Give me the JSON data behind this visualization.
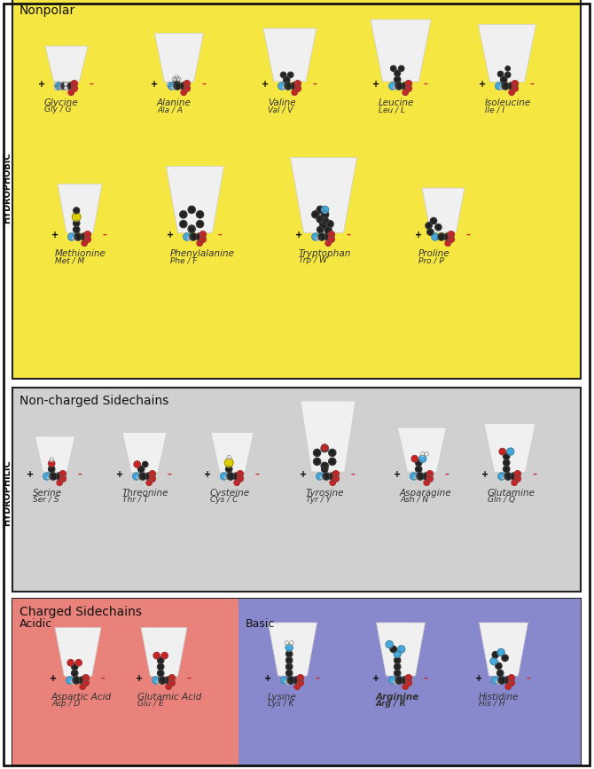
{
  "title_font_size": 9,
  "label_font_size": 7.5,
  "sublabel_font_size": 6.5,
  "bg_color": "#ffffff",
  "nonpolar_bg": "#f5e642",
  "noncharged_bg": "#d0d0d0",
  "acidic_bg": "#e8827a",
  "basic_bg": "#8888cc",
  "outer_border": "#222222",
  "section1_title": "Nonpolar",
  "section2_title": "Non-charged Sidechains",
  "section3_title": "Charged Sidechains",
  "acidic_label": "Acidic",
  "basic_label": "Basic",
  "hydrophobic_label": "HYDROPHOBIC",
  "hydrophilic_label": "HYDROPHILIC",
  "row1_acids": [
    {
      "name": "Glycine",
      "abbr": "Gly / G"
    },
    {
      "name": "Alanine",
      "abbr": "Ala / A"
    },
    {
      "name": "Valine",
      "abbr": "Val / V"
    },
    {
      "name": "Leucine",
      "abbr": "Leu / L"
    },
    {
      "name": "Isoleucine",
      "abbr": "Ile / I"
    }
  ],
  "row2_acids": [
    {
      "name": "Methionine",
      "abbr": "Met / M"
    },
    {
      "name": "Phenylalanine",
      "abbr": "Phe / F"
    },
    {
      "name": "Tryptophan",
      "abbr": "Trp / W"
    },
    {
      "name": "Proline",
      "abbr": "Pro / P"
    }
  ],
  "row3_acids": [
    {
      "name": "Serine",
      "abbr": "Ser / S"
    },
    {
      "name": "Threonine",
      "abbr": "Thr / T"
    },
    {
      "name": "Cysteine",
      "abbr": "Cys / C"
    },
    {
      "name": "Tyrosine",
      "abbr": "Tyr / Y"
    },
    {
      "name": "Asparagine",
      "abbr": "Asn / N"
    },
    {
      "name": "Glutamine",
      "abbr": "Gln / Q"
    }
  ],
  "acidic_acids": [
    {
      "name": "Aspartic Acid",
      "abbr": "Asp / D"
    },
    {
      "name": "Glutamic Acid",
      "abbr": "Glu / E"
    }
  ],
  "basic_acids": [
    {
      "name": "Lysine",
      "abbr": "Lys / K"
    },
    {
      "name": "Arginine",
      "abbr": "Arg / R",
      "bold": true
    },
    {
      "name": "Histidine",
      "abbr": "His / H"
    }
  ],
  "trapezoid_color": "#f0f0f0",
  "trapezoid_edge": "#cccccc",
  "atom_colors": {
    "C": "#222222",
    "O": "#cc2222",
    "N": "#44aadd",
    "S": "#ddcc00",
    "H": "#eeeeee"
  }
}
